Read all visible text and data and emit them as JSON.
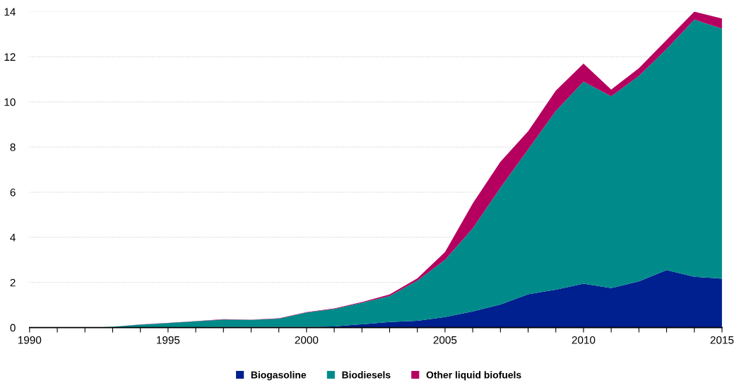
{
  "chart_data": {
    "type": "area",
    "stacked": true,
    "x": [
      1990,
      1991,
      1992,
      1993,
      1994,
      1995,
      1996,
      1997,
      1998,
      1999,
      2000,
      2001,
      2002,
      2003,
      2004,
      2005,
      2006,
      2007,
      2008,
      2009,
      2010,
      2011,
      2012,
      2013,
      2014,
      2015
    ],
    "series": [
      {
        "name": "Biogasoline",
        "color": "#00208f",
        "values": [
          0,
          0,
          0,
          0,
          0,
          0,
          0.02,
          0.03,
          0.03,
          0.03,
          0.03,
          0.05,
          0.15,
          0.25,
          0.3,
          0.47,
          0.72,
          1.02,
          1.48,
          1.68,
          1.95,
          1.75,
          2.05,
          2.55,
          2.25,
          2.17
        ]
      },
      {
        "name": "Biodiesels",
        "color": "#008b8a",
        "values": [
          0,
          0,
          0,
          0.04,
          0.13,
          0.2,
          0.26,
          0.33,
          0.31,
          0.37,
          0.64,
          0.78,
          0.95,
          1.15,
          1.78,
          2.53,
          3.68,
          5.18,
          6.42,
          7.92,
          8.95,
          8.5,
          9.1,
          9.8,
          11.4,
          11.08
        ]
      },
      {
        "name": "Other liquid biofuels",
        "color": "#b5005f",
        "values": [
          0,
          0,
          0,
          0,
          0.01,
          0.01,
          0.01,
          0.01,
          0.01,
          0.01,
          0.02,
          0.02,
          0.03,
          0.07,
          0.1,
          0.35,
          1.1,
          1.15,
          0.8,
          0.9,
          0.8,
          0.3,
          0.35,
          0.4,
          0.35,
          0.45
        ]
      }
    ],
    "xlim": [
      1990,
      2015
    ],
    "xticks": [
      1990,
      {
        "value": 1991,
        "label": null
      },
      {
        "value": 1992,
        "label": null
      },
      {
        "value": 1993,
        "label": null
      },
      {
        "value": 1994,
        "label": null
      },
      1995,
      {
        "value": 1996,
        "label": null
      },
      {
        "value": 1997,
        "label": null
      },
      {
        "value": 1998,
        "label": null
      },
      {
        "value": 1999,
        "label": null
      },
      2000,
      {
        "value": 2001,
        "label": null
      },
      {
        "value": 2002,
        "label": null
      },
      {
        "value": 2003,
        "label": null
      },
      {
        "value": 2004,
        "label": null
      },
      2005,
      {
        "value": 2006,
        "label": null
      },
      {
        "value": 2007,
        "label": null
      },
      {
        "value": 2008,
        "label": null
      },
      {
        "value": 2009,
        "label": null
      },
      2010,
      {
        "value": 2011,
        "label": null
      },
      {
        "value": 2012,
        "label": null
      },
      {
        "value": 2013,
        "label": null
      },
      {
        "value": 2014,
        "label": null
      },
      2015
    ],
    "ylim": [
      0,
      14
    ],
    "yticks": [
      0,
      2,
      4,
      6,
      8,
      10,
      12,
      14
    ],
    "grid": "y",
    "legend": "bottom"
  }
}
